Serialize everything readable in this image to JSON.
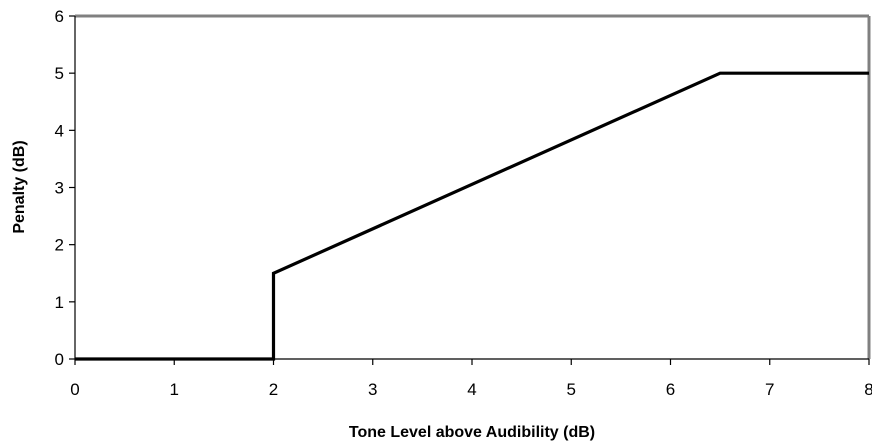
{
  "chart_data": {
    "type": "line",
    "title": "",
    "xlabel": "Tone Level above Audibility (dB)",
    "ylabel": "Penalty (dB)",
    "xlim": [
      0,
      8
    ],
    "ylim": [
      0,
      6
    ],
    "x_ticks": [
      "0",
      "1",
      "2",
      "3",
      "4",
      "5",
      "6",
      "7",
      "8"
    ],
    "y_ticks": [
      "0",
      "1",
      "2",
      "3",
      "4",
      "5",
      "6"
    ],
    "grid": false,
    "legend": "none",
    "series": [
      {
        "color": "#000000",
        "points": [
          {
            "x": 0,
            "y": 0
          },
          {
            "x": 2,
            "y": 0
          },
          {
            "x": 2,
            "y": 1.5
          },
          {
            "x": 6.5,
            "y": 5
          },
          {
            "x": 8,
            "y": 5
          }
        ]
      }
    ],
    "frame_color": "#808080",
    "axis_color": "#000000"
  }
}
